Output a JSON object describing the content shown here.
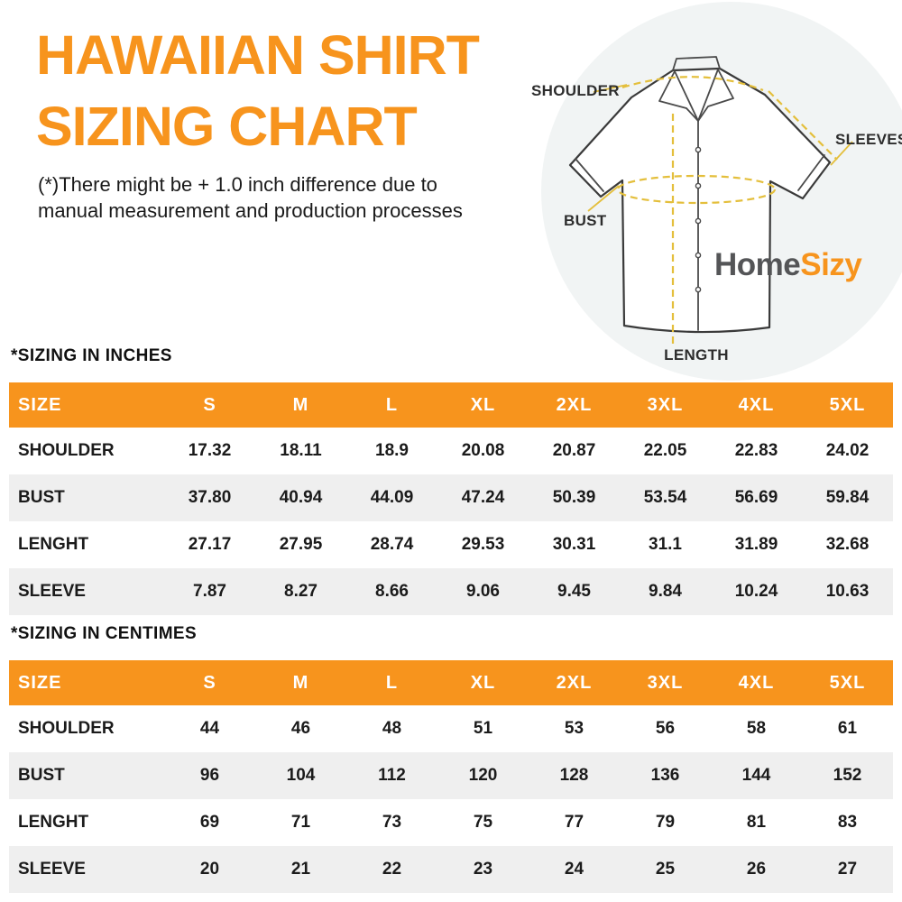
{
  "page": {
    "title": "HAWAIIAN SHIRT\nSIZING CHART",
    "subtitle": "(*)There might be + 1.0 inch difference due to\nmanual measurement and production processes"
  },
  "logo": {
    "part1": "Home",
    "part2": "Sizy"
  },
  "diagram": {
    "labels": {
      "shoulder": "SHOULDER",
      "sleeves": "SLEEVES",
      "bust": "BUST",
      "length": "LENGTH"
    }
  },
  "colors": {
    "accent_orange": "#f7941d",
    "measure_yellow": "#e4bf3c",
    "row_stripe_gray": "#efefef",
    "logo_gray": "#545557",
    "text_dark": "#1d1d1d"
  },
  "tables": [
    {
      "heading": "*SIZING IN INCHES",
      "columns": [
        "SIZE",
        "S",
        "M",
        "L",
        "XL",
        "2XL",
        "3XL",
        "4XL",
        "5XL"
      ],
      "rows": [
        {
          "label": "SHOULDER",
          "values": [
            "17.32",
            "18.11",
            "18.9",
            "20.08",
            "20.87",
            "22.05",
            "22.83",
            "24.02"
          ]
        },
        {
          "label": "BUST",
          "values": [
            "37.80",
            "40.94",
            "44.09",
            "47.24",
            "50.39",
            "53.54",
            "56.69",
            "59.84"
          ]
        },
        {
          "label": "LENGHT",
          "values": [
            "27.17",
            "27.95",
            "28.74",
            "29.53",
            "30.31",
            "31.1",
            "31.89",
            "32.68"
          ]
        },
        {
          "label": "SLEEVE",
          "values": [
            "7.87",
            "8.27",
            "8.66",
            "9.06",
            "9.45",
            "9.84",
            "10.24",
            "10.63"
          ]
        }
      ]
    },
    {
      "heading": "*SIZING IN CENTIMES",
      "columns": [
        "SIZE",
        "S",
        "M",
        "L",
        "XL",
        "2XL",
        "3XL",
        "4XL",
        "5XL"
      ],
      "rows": [
        {
          "label": "SHOULDER",
          "values": [
            "44",
            "46",
            "48",
            "51",
            "53",
            "56",
            "58",
            "61"
          ]
        },
        {
          "label": "BUST",
          "values": [
            "96",
            "104",
            "112",
            "120",
            "128",
            "136",
            "144",
            "152"
          ]
        },
        {
          "label": "LENGHT",
          "values": [
            "69",
            "71",
            "73",
            "75",
            "77",
            "79",
            "81",
            "83"
          ]
        },
        {
          "label": "SLEEVE",
          "values": [
            "20",
            "21",
            "22",
            "23",
            "24",
            "25",
            "26",
            "27"
          ]
        }
      ]
    }
  ]
}
